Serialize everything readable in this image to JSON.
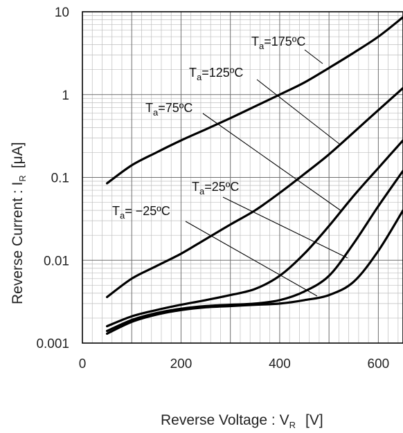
{
  "chart_data": {
    "type": "line",
    "title": "",
    "xlabel": {
      "main": "Reverse Voltage : V",
      "sub": "R",
      "unit": "[V]"
    },
    "ylabel": {
      "main": "Reverse Current : I",
      "sub": "R",
      "unit": "[μA]"
    },
    "xlim": [
      0,
      650
    ],
    "ylim": [
      0.001,
      10
    ],
    "yscale": "log",
    "grid": true,
    "x_ticks": [
      0,
      200,
      400,
      600
    ],
    "x_tick_labels": [
      "0",
      "200",
      "400",
      "600"
    ],
    "y_ticks": [
      0.001,
      0.01,
      0.1,
      1,
      10
    ],
    "y_tick_labels": [
      "0.001",
      "0.01",
      "0.1",
      "1",
      "10"
    ],
    "series": [
      {
        "name_main": "T",
        "name_sub": "a",
        "name_rest": "=175ºC",
        "points": [
          [
            50,
            0.085
          ],
          [
            100,
            0.14
          ],
          [
            150,
            0.2
          ],
          [
            200,
            0.28
          ],
          [
            250,
            0.38
          ],
          [
            300,
            0.52
          ],
          [
            350,
            0.72
          ],
          [
            400,
            1.0
          ],
          [
            450,
            1.4
          ],
          [
            500,
            2.1
          ],
          [
            550,
            3.2
          ],
          [
            600,
            5.0
          ],
          [
            650,
            8.6
          ]
        ]
      },
      {
        "name_main": "T",
        "name_sub": "a",
        "name_rest": "=125ºC",
        "points": [
          [
            50,
            0.0036
          ],
          [
            100,
            0.006
          ],
          [
            150,
            0.0085
          ],
          [
            200,
            0.012
          ],
          [
            250,
            0.018
          ],
          [
            300,
            0.027
          ],
          [
            350,
            0.04
          ],
          [
            400,
            0.065
          ],
          [
            450,
            0.11
          ],
          [
            500,
            0.19
          ],
          [
            550,
            0.35
          ],
          [
            600,
            0.65
          ],
          [
            650,
            1.2
          ]
        ]
      },
      {
        "name_main": "T",
        "name_sub": "a",
        "name_rest": "=75ºC",
        "points": [
          [
            50,
            0.0016
          ],
          [
            100,
            0.0021
          ],
          [
            150,
            0.0025
          ],
          [
            200,
            0.0029
          ],
          [
            250,
            0.0033
          ],
          [
            300,
            0.0038
          ],
          [
            350,
            0.0045
          ],
          [
            400,
            0.0065
          ],
          [
            450,
            0.012
          ],
          [
            500,
            0.026
          ],
          [
            550,
            0.06
          ],
          [
            600,
            0.13
          ],
          [
            650,
            0.28
          ]
        ]
      },
      {
        "name_main": "T",
        "name_sub": "a",
        "name_rest": "=25ºC",
        "points": [
          [
            50,
            0.0014
          ],
          [
            100,
            0.0019
          ],
          [
            150,
            0.0023
          ],
          [
            200,
            0.0026
          ],
          [
            250,
            0.0028
          ],
          [
            300,
            0.0029
          ],
          [
            350,
            0.003
          ],
          [
            400,
            0.0033
          ],
          [
            450,
            0.0042
          ],
          [
            500,
            0.0065
          ],
          [
            550,
            0.016
          ],
          [
            600,
            0.045
          ],
          [
            650,
            0.12
          ]
        ]
      },
      {
        "name_main": "T",
        "name_sub": "a",
        "name_rest": "= −25ºC",
        "points": [
          [
            50,
            0.0013
          ],
          [
            100,
            0.0018
          ],
          [
            150,
            0.0022
          ],
          [
            200,
            0.0025
          ],
          [
            250,
            0.0027
          ],
          [
            300,
            0.0028
          ],
          [
            350,
            0.0029
          ],
          [
            400,
            0.003
          ],
          [
            450,
            0.0033
          ],
          [
            500,
            0.0038
          ],
          [
            550,
            0.0055
          ],
          [
            600,
            0.013
          ],
          [
            650,
            0.04
          ]
        ]
      }
    ]
  }
}
